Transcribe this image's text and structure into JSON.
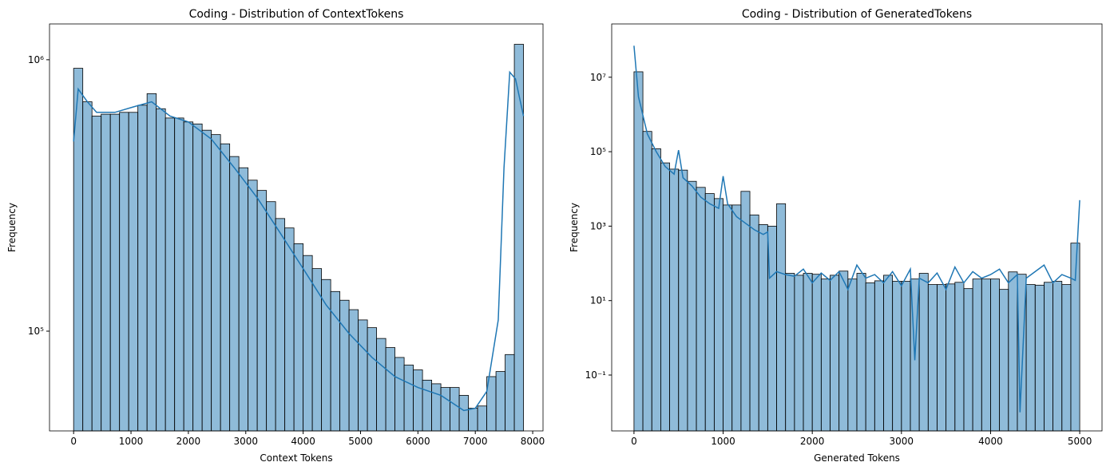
{
  "chart_data": [
    {
      "type": "histogram",
      "title": "Coding - Distribution of ContextTokens",
      "xlabel": "Context Tokens",
      "ylabel": "Frequency",
      "log_y": true,
      "color": "#1f77b4",
      "bins": [
        0,
        160,
        320,
        480,
        640,
        800,
        960,
        1120,
        1280,
        1440,
        1600,
        1760,
        1920,
        2080,
        2240,
        2400,
        2560,
        2720,
        2880,
        3040,
        3200,
        3360,
        3520,
        3680,
        3840,
        4000,
        4160,
        4320,
        4480,
        4640,
        4800,
        4960,
        5120,
        5280,
        5440,
        5600,
        5760,
        5920,
        6080,
        6240,
        6400,
        6560,
        6720,
        6880,
        7040,
        7200,
        7360,
        7520,
        7680,
        7840
      ],
      "values": [
        930000,
        700000,
        620000,
        630000,
        630000,
        640000,
        640000,
        680000,
        750000,
        660000,
        610000,
        610000,
        590000,
        580000,
        550000,
        530000,
        490000,
        440000,
        400000,
        360000,
        330000,
        300000,
        260000,
        240000,
        210000,
        190000,
        170000,
        155000,
        140000,
        130000,
        120000,
        110000,
        103000,
        94000,
        87000,
        80000,
        75000,
        72000,
        66000,
        64000,
        62000,
        62000,
        58000,
        52000,
        53000,
        68000,
        71000,
        82000,
        1140000
      ],
      "kde": {
        "x": [
          0,
          80,
          240,
          400,
          720,
          1040,
          1360,
          1680,
          2000,
          2400,
          2800,
          3200,
          3600,
          4000,
          4400,
          4800,
          5200,
          5600,
          6000,
          6400,
          6800,
          7000,
          7200,
          7400,
          7500,
          7600,
          7700,
          7840
        ],
        "values": [
          500000,
          780000,
          700000,
          640000,
          640000,
          670000,
          700000,
          620000,
          590000,
          510000,
          400000,
          310000,
          230000,
          170000,
          125000,
          98000,
          80000,
          68000,
          62000,
          58000,
          51000,
          52000,
          60000,
          110000,
          400000,
          900000,
          850000,
          620000
        ]
      },
      "xlim": [
        -420,
        8180
      ],
      "xticks": [
        0,
        1000,
        2000,
        3000,
        4000,
        5000,
        6000,
        7000,
        8000
      ],
      "ylim": [
        42900,
        1355000
      ],
      "yticks": [
        {
          "value": 100000,
          "label": "10⁵"
        },
        {
          "value": 1000000,
          "label": "10⁶"
        }
      ]
    },
    {
      "type": "histogram",
      "title": "Coding - Distribution of GeneratedTokens",
      "xlabel": "Generated Tokens",
      "ylabel": "Frequency",
      "log_y": true,
      "color": "#1f77b4",
      "bins": [
        0,
        100,
        200,
        300,
        400,
        500,
        600,
        700,
        800,
        900,
        1000,
        1100,
        1200,
        1300,
        1400,
        1500,
        1600,
        1700,
        1800,
        1900,
        2000,
        2100,
        2200,
        2300,
        2400,
        2500,
        2600,
        2700,
        2800,
        2900,
        3000,
        3100,
        3200,
        3300,
        3400,
        3500,
        3600,
        3700,
        3800,
        3900,
        4000,
        4100,
        4200,
        4300,
        4400,
        4500,
        4600,
        4700,
        4800,
        4900,
        5000
      ],
      "values": [
        14000000,
        350000,
        120000,
        50000,
        34000,
        32000,
        16000,
        11000,
        7500,
        5500,
        3700,
        3700,
        8600,
        2000,
        1100,
        1000,
        4000,
        54,
        48,
        54,
        51,
        38,
        48,
        62,
        38,
        54,
        30,
        34,
        48,
        33,
        33,
        38,
        54,
        27,
        27,
        28,
        31,
        21,
        38,
        38,
        38,
        20,
        59,
        51,
        27,
        26,
        31,
        33,
        27,
        350
      ],
      "kde": {
        "x": [
          0,
          50,
          150,
          250,
          350,
          450,
          500,
          550,
          650,
          750,
          850,
          950,
          1000,
          1050,
          1150,
          1250,
          1350,
          1450,
          1500,
          1520,
          1600,
          1700,
          1800,
          1900,
          2000,
          2100,
          2200,
          2300,
          2400,
          2500,
          2600,
          2700,
          2800,
          2900,
          3000,
          3100,
          3150,
          3200,
          3300,
          3400,
          3500,
          3600,
          3700,
          3800,
          3900,
          4000,
          4100,
          4200,
          4300,
          4330,
          4400,
          4500,
          4600,
          4700,
          4800,
          4900,
          4950,
          5000
        ],
        "values": [
          70000000,
          3000000,
          300000,
          100000,
          40000,
          25000,
          110000,
          20000,
          12000,
          6000,
          4000,
          3000,
          22000,
          4000,
          1800,
          1200,
          800,
          600,
          700,
          40,
          60,
          50,
          45,
          70,
          30,
          55,
          35,
          60,
          20,
          90,
          40,
          50,
          30,
          60,
          25,
          70,
          0.25,
          40,
          30,
          55,
          20,
          80,
          30,
          60,
          40,
          50,
          70,
          30,
          50,
          0.01,
          40,
          60,
          90,
          30,
          50,
          40,
          35,
          5000
        ]
      },
      "xlim": [
        -250,
        5250
      ],
      "xticks": [
        0,
        1000,
        2000,
        3000,
        4000,
        5000
      ],
      "ylim": [
        0.00316,
        270000000
      ],
      "yticks": [
        {
          "value": 0.1,
          "label": "10⁻¹"
        },
        {
          "value": 10,
          "label": "10¹"
        },
        {
          "value": 1000,
          "label": "10³"
        },
        {
          "value": 100000,
          "label": "10⁵"
        },
        {
          "value": 10000000,
          "label": "10⁷"
        }
      ]
    }
  ]
}
